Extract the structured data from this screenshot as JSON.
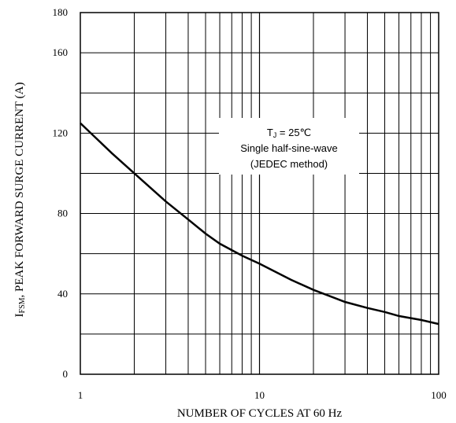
{
  "chart_data": {
    "type": "line",
    "x_scale": "log",
    "xlim": [
      1,
      100
    ],
    "ylim": [
      0,
      180
    ],
    "xlabel": "NUMBER OF CYCLES AT 60 Hz",
    "ylabel_main": "I",
    "ylabel_sub": "FSM",
    "ylabel_rest": ", PEAK FORWARD SURGE CURRENT (A)",
    "x_tick_labels": [
      "1",
      "10",
      "100"
    ],
    "y_tick_labels": [
      "0",
      "40",
      "80",
      "120",
      "160",
      "180"
    ],
    "x_ticks": [
      1,
      10,
      100
    ],
    "y_ticks": [
      0,
      40,
      80,
      120,
      160,
      180
    ],
    "grid": true,
    "annotation": {
      "line1_main": "T",
      "line1_sub": "J",
      "line1_rest": " = 25℃",
      "line2": "Single half-sine-wave",
      "line3": "(JEDEC method)"
    },
    "series": [
      {
        "x": [
          1,
          1.5,
          2,
          3,
          4,
          5,
          6,
          8,
          10,
          15,
          20,
          30,
          40,
          50,
          60,
          80,
          100
        ],
        "y": [
          125,
          110,
          100,
          86,
          77,
          70,
          65,
          59,
          55,
          47,
          42,
          36,
          33,
          31,
          29,
          27,
          25
        ]
      }
    ]
  }
}
